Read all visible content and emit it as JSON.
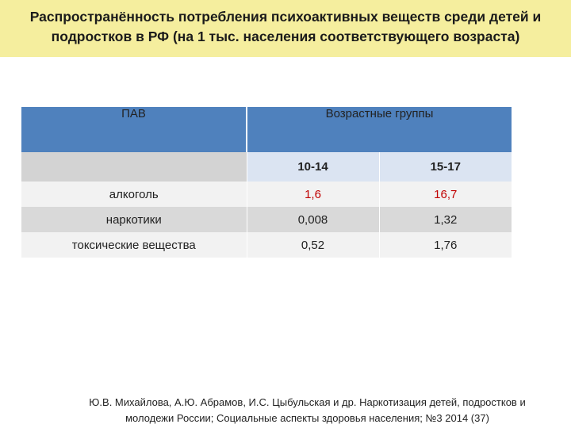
{
  "title": {
    "line1": "Распространённость потребления психоактивных веществ среди детей и",
    "line2": "подростков  в РФ (на 1 тыс. населения соответствующего возраста)"
  },
  "table": {
    "header_pav": "ПАВ",
    "header_age": "Возрастные группы",
    "age_groups": [
      "10-14",
      "15-17"
    ],
    "rows": [
      {
        "substance": "алкоголь",
        "v10_14": "1,6",
        "v15_17": "16,7"
      },
      {
        "substance": "наркотики",
        "v10_14": "0,008",
        "v15_17": "1,32"
      },
      {
        "substance": "токсические вещества",
        "v10_14": "0,52",
        "v15_17": "1,76"
      }
    ]
  },
  "footnote": {
    "line1": "Ю.В. Михайлова, А.Ю. Абрамов, И.С. Цыбульская и др. Наркотизация детей, подростков и",
    "line2": "молодежи России;  Социальные аспекты здоровья населения; №3 2014 (37)"
  },
  "colors": {
    "title_bg": "#f5ee9e",
    "header_bg": "#4f81bd",
    "highlight_text": "#c00000"
  }
}
